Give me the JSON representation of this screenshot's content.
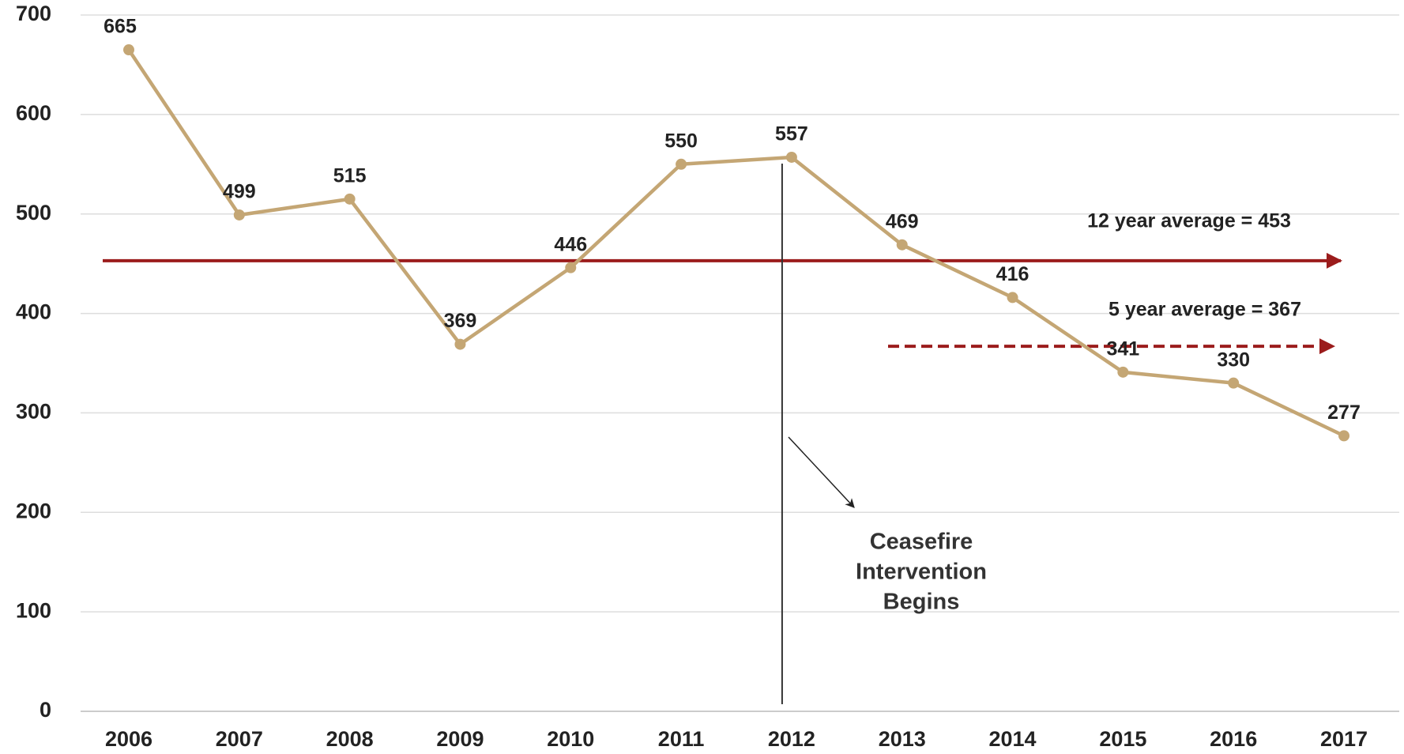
{
  "chart_data": {
    "type": "line",
    "categories": [
      "2006",
      "2007",
      "2008",
      "2009",
      "2010",
      "2011",
      "2012",
      "2013",
      "2014",
      "2015",
      "2016",
      "2017"
    ],
    "series": [
      {
        "color": "#c4a674",
        "values": [
          665,
          499,
          515,
          369,
          446,
          550,
          557,
          469,
          416,
          341,
          330,
          277
        ]
      }
    ],
    "ylim": [
      0,
      700
    ],
    "yticks": [
      0,
      100,
      200,
      300,
      400,
      500,
      600,
      700
    ],
    "grid": true,
    "averages": [
      {
        "label": "12 year average = 453",
        "value": 453,
        "color": "#9b1c1c",
        "style": "solid"
      },
      {
        "label": "5 year average = 367",
        "value": 367,
        "color": "#9b1c1c",
        "style": "dashed"
      }
    ],
    "annotation": {
      "lines": [
        "Ceasefire",
        "Intervention",
        "Begins"
      ],
      "category": "2012"
    }
  }
}
